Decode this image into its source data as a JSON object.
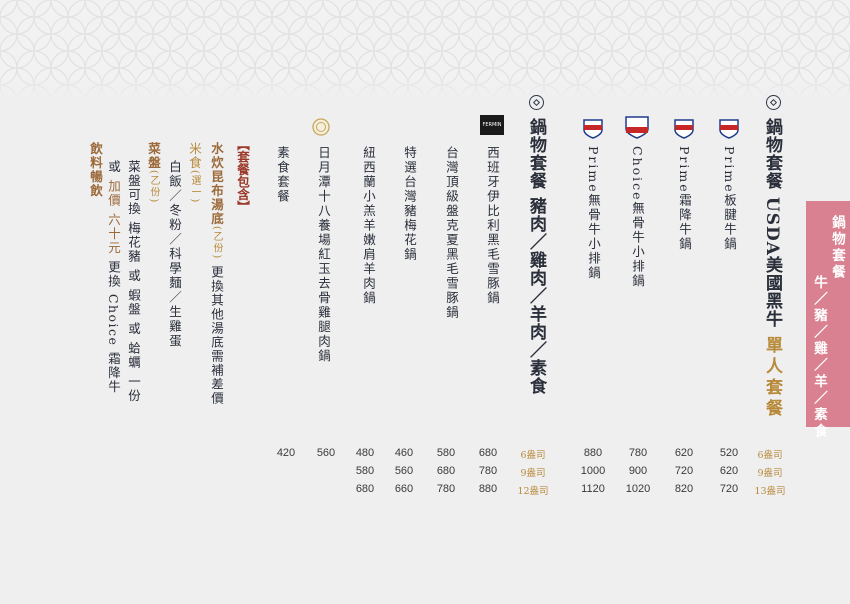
{
  "colors": {
    "background": "#efeff0",
    "accent_gold": "#b78a3a",
    "tab": "#d98191",
    "text": "#2a2f3a"
  },
  "side_tab": {
    "line1": "鍋物套餐",
    "line2": "牛／豬／雞／羊／素食"
  },
  "beef": {
    "heading_a": "鍋物套餐 USDA美國黑牛",
    "heading_b": "單人套餐",
    "items": [
      {
        "name": "Prime板腱牛鍋",
        "badge": "USDA PRIME"
      },
      {
        "name": "Prime霜降牛鍋",
        "badge": "USDA PRIME"
      },
      {
        "name": "Choice無骨牛小排鍋",
        "badge": "USDA CHOICE BEEF"
      },
      {
        "name": "Prime無骨牛小排鍋",
        "badge": "USDA PRIME"
      }
    ],
    "oz": [
      "6盎司",
      "9盎司",
      "13盎司"
    ],
    "prices": [
      [
        "520",
        "620",
        "720"
      ],
      [
        "620",
        "720",
        "820"
      ],
      [
        "780",
        "900",
        "1020"
      ],
      [
        "880",
        "1000",
        "1120"
      ]
    ]
  },
  "other": {
    "heading": "鍋物套餐 豬肉／雞肉／羊肉／素食",
    "items": [
      {
        "name": "西班牙伊比利黑毛雪豚鍋",
        "badge": "FERMIN"
      },
      {
        "name": "台灣頂級盤克夏黑毛雪豚鍋"
      },
      {
        "name": "特選台灣豬梅花鍋"
      },
      {
        "name": "紐西蘭小羔羊嫩肩羊肉鍋"
      },
      {
        "name": "日月潭十八養場紅玉去骨雞腿肉鍋"
      },
      {
        "name": "素食套餐"
      }
    ],
    "oz": [
      "6盎司",
      "9盎司",
      "12盎司"
    ],
    "prices": [
      [
        "680",
        "780",
        "880"
      ],
      [
        "580",
        "680",
        "780"
      ],
      [
        "460",
        "560",
        "660"
      ],
      [
        "480",
        "580",
        "680"
      ],
      [
        "560"
      ],
      [
        "420"
      ]
    ]
  },
  "set": {
    "title": "【套餐包含】",
    "broth_label": "水炊昆布湯底",
    "broth_note": "(乙份)",
    "broth_rest": " 更換其他湯底需補差價",
    "rice_label": "米食",
    "rice_note": "(選一)",
    "rice_options": "白飯／冬粉／科學麵／生雞蛋",
    "veg_label": "菜盤",
    "veg_note": "(乙份)",
    "veg_line1": "菜盤可換 梅花豬 或 蝦盤 或 蛤蠣 一份",
    "veg_line2_a": "或 ",
    "veg_line2_b": "加價 六十元",
    "veg_line2_c": " 更換 Choice 霜降牛",
    "drink_label": "飲料暢飲"
  }
}
